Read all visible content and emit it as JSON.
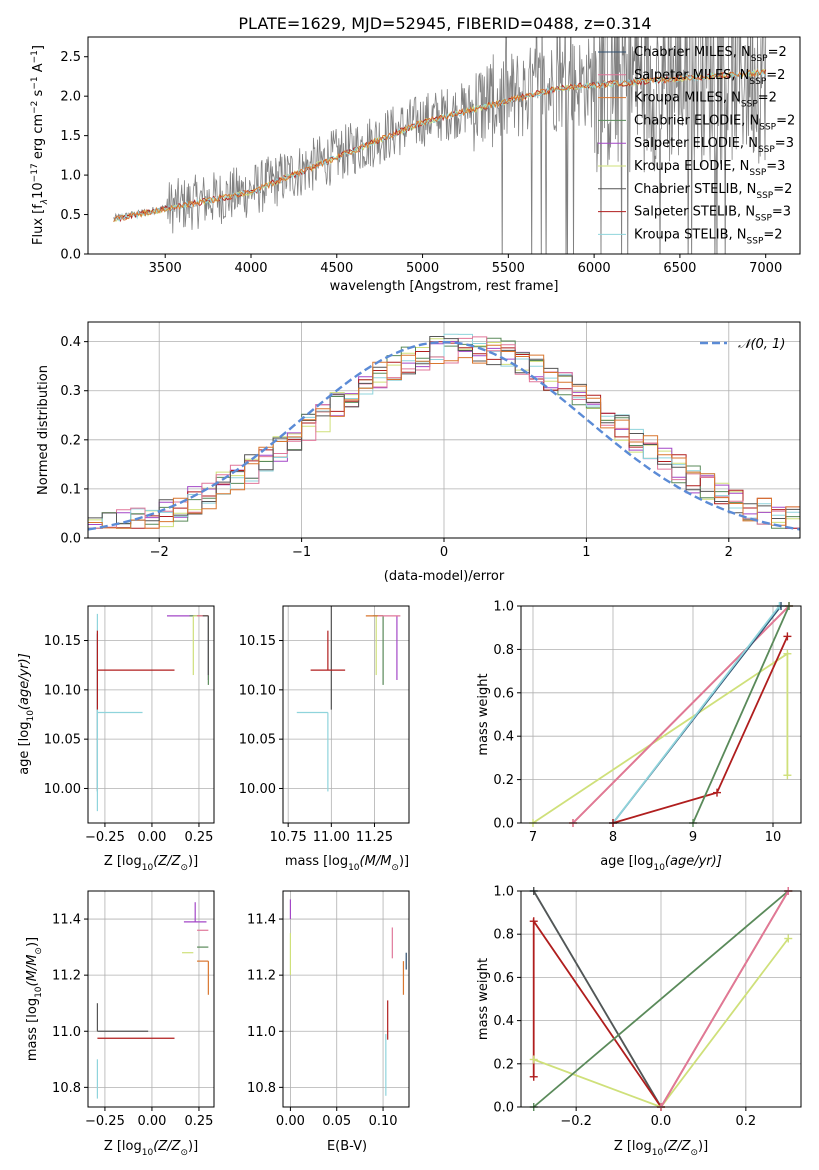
{
  "title": "PLATE=1629, MJD=52945, FIBERID=0488, z=0.314",
  "colors": {
    "chabrier_miles": "#2f4f6f",
    "salpeter_miles": "#e0779a",
    "kroupa_miles": "#d9762f",
    "chabrier_elodie": "#5a8a5a",
    "salpeter_elodie": "#a347c7",
    "kroupa_elodie": "#cfe07a",
    "chabrier_stelib": "#555555",
    "salpeter_stelib": "#b01e1e",
    "kroupa_stelib": "#8fd4dc",
    "data": "#808080",
    "normal_curve": "#5b8bd6"
  },
  "chart_data": [
    {
      "type": "line",
      "name": "spectrum",
      "xlabel": "wavelength [Angstrom, rest frame]",
      "ylabel_main": "Flux [f",
      "ylabel_sub": "λ",
      "ylabel_rest": "10",
      "ylabel_exp1": "−17",
      "ylabel_mid": " erg cm",
      "ylabel_exp2": "−2",
      "ylabel_mid2": " s",
      "ylabel_exp3": "−1",
      "ylabel_mid3": " A",
      "ylabel_exp4": "−1",
      "ylabel_end": "]",
      "xlim": [
        3050,
        7200
      ],
      "ylim": [
        0,
        2.75
      ],
      "xticks": [
        3500,
        4000,
        4500,
        5000,
        5500,
        6000,
        6500,
        7000
      ],
      "yticks": [
        0.0,
        0.5,
        1.0,
        1.5,
        2.0,
        2.5
      ],
      "x_start": 3200,
      "x_end": 7000,
      "grid": false,
      "legend_position": "top-right",
      "legend": [
        {
          "label": "Chabrier MILES, N",
          "sub": "SSP",
          "suffix": "=2",
          "color_key": "chabrier_miles"
        },
        {
          "label": "Salpeter MILES, N",
          "sub": "SSP",
          "suffix": "=2",
          "color_key": "salpeter_miles"
        },
        {
          "label": "Kroupa MILES, N",
          "sub": "SSP",
          "suffix": "=2",
          "color_key": "kroupa_miles"
        },
        {
          "label": "Chabrier ELODIE, N",
          "sub": "SSP",
          "suffix": "=2",
          "color_key": "chabrier_elodie"
        },
        {
          "label": "Salpeter ELODIE, N",
          "sub": "SSP",
          "suffix": "=3",
          "color_key": "salpeter_elodie"
        },
        {
          "label": "Kroupa ELODIE, N",
          "sub": "SSP",
          "suffix": "=3",
          "color_key": "kroupa_elodie"
        },
        {
          "label": "Chabrier STELIB, N",
          "sub": "SSP",
          "suffix": "=2",
          "color_key": "chabrier_stelib"
        },
        {
          "label": "Salpeter STELIB, N",
          "sub": "SSP",
          "suffix": "=3",
          "color_key": "salpeter_stelib"
        },
        {
          "label": "Kroupa STELIB, N",
          "sub": "SSP",
          "suffix": "=2",
          "color_key": "kroupa_stelib"
        }
      ]
    },
    {
      "type": "histogram",
      "name": "residuals",
      "xlabel": "(data-model)/error",
      "ylabel": "Normed distribution",
      "xlim": [
        -2.5,
        2.5
      ],
      "ylim": [
        0,
        0.44
      ],
      "xticks": [
        -2,
        -1,
        0,
        1,
        2
      ],
      "yticks": [
        0.0,
        0.1,
        0.2,
        0.3,
        0.4
      ],
      "bin_width": 0.1,
      "grid": true,
      "legend_position": "top-right",
      "legend_label": "𝒩(0, 1)"
    },
    {
      "type": "scatter",
      "name": "age-vs-Z",
      "xlabel": "Z [log",
      "xlabel_sub": "10",
      "xlabel_end": "(Z/Z",
      "xlabel_sun": "⊙",
      "xlabel_close": ")]",
      "ylabel": "age  [log",
      "ylabel_sub": "10",
      "ylabel_end": "(age/yr)]",
      "xlim": [
        -0.34,
        0.33
      ],
      "ylim": [
        9.965,
        10.185
      ],
      "xticks": [
        "-0.25",
        "0.00",
        "0.25"
      ],
      "xtick_values": [
        -0.25,
        0.0,
        0.25
      ],
      "yticks": [
        "10.00",
        "10.05",
        "10.10",
        "10.15"
      ],
      "ytick_values": [
        10.0,
        10.05,
        10.1,
        10.15
      ],
      "grid": true,
      "points": [
        {
          "key": "chabrier_miles",
          "x": -0.29,
          "y": 10.077,
          "xerr": [
            0.0,
            0.0
          ],
          "yerr": [
            0.08,
            0.08
          ]
        },
        {
          "key": "kroupa_stelib",
          "x": -0.29,
          "y": 10.077,
          "xerr": [
            0.0,
            0.24
          ],
          "yerr": [
            0.1,
            0.1
          ]
        },
        {
          "key": "salpeter_stelib",
          "x": -0.29,
          "y": 10.12,
          "xerr": [
            0.0,
            0.41
          ],
          "yerr": [
            0.04,
            0.04
          ]
        },
        {
          "key": "salpeter_elodie",
          "x": 0.3,
          "y": 10.175,
          "xerr": [
            0.22,
            0.0
          ],
          "yerr": [
            0.065,
            0.0
          ]
        },
        {
          "key": "chabrier_elodie",
          "x": 0.3,
          "y": 10.175,
          "xerr": [
            0.1,
            0.0
          ],
          "yerr": [
            0.07,
            0.0
          ]
        },
        {
          "key": "kroupa_elodie",
          "x": 0.22,
          "y": 10.175,
          "xerr": [
            0.0,
            0.08
          ],
          "yerr": [
            0.06,
            0.0
          ]
        },
        {
          "key": "kroupa_miles",
          "x": 0.3,
          "y": 10.175,
          "xerr": [
            0.06,
            0.0
          ],
          "yerr": [
            0.0,
            0.0
          ]
        },
        {
          "key": "salpeter_miles",
          "x": 0.3,
          "y": 10.175,
          "xerr": [
            0.06,
            0.0
          ],
          "yerr": [
            0.0,
            0.0
          ]
        },
        {
          "key": "chabrier_stelib",
          "x": 0.3,
          "y": 10.175,
          "xerr": [
            0.03,
            0.0
          ],
          "yerr": [
            0.06,
            0.0
          ]
        }
      ]
    },
    {
      "type": "scatter",
      "name": "age-vs-mass",
      "xlabel": "mass [log",
      "xlabel_sub": "10",
      "xlabel_end": "(M/M",
      "xlabel_sun": "⊙",
      "xlabel_close": ")]",
      "xlim": [
        10.72,
        11.45
      ],
      "ylim": [
        9.965,
        10.185
      ],
      "xticks": [
        "10.75",
        "11.00",
        "11.25"
      ],
      "xtick_values": [
        10.75,
        11.0,
        11.25
      ],
      "yticks": [
        "10.00",
        "10.05",
        "10.10",
        "10.15"
      ],
      "ytick_values": [
        10.0,
        10.05,
        10.1,
        10.15
      ],
      "grid": true,
      "points": [
        {
          "key": "kroupa_stelib",
          "x": 10.98,
          "y": 10.077,
          "xerr": [
            0.18,
            0.0
          ],
          "yerr": [
            0.08,
            0.0
          ]
        },
        {
          "key": "chabrier_stelib",
          "x": 11.0,
          "y": 10.12,
          "xerr": [
            0.0,
            0.0
          ],
          "yerr": [
            0.04,
            0.12
          ]
        },
        {
          "key": "salpeter_stelib",
          "x": 10.98,
          "y": 10.12,
          "xerr": [
            0.1,
            0.1
          ],
          "yerr": [
            0.0,
            0.04
          ]
        },
        {
          "key": "salpeter_elodie",
          "x": 11.38,
          "y": 10.175,
          "xerr": [
            0.0,
            0.0
          ],
          "yerr": [
            0.065,
            0.0
          ]
        },
        {
          "key": "chabrier_elodie",
          "x": 11.3,
          "y": 10.175,
          "xerr": [
            0.06,
            0.0
          ],
          "yerr": [
            0.07,
            0.0
          ]
        },
        {
          "key": "kroupa_elodie",
          "x": 11.26,
          "y": 10.175,
          "xerr": [
            0.0,
            0.0
          ],
          "yerr": [
            0.06,
            0.0
          ]
        },
        {
          "key": "kroupa_miles",
          "x": 11.3,
          "y": 10.175,
          "xerr": [
            0.1,
            0.0
          ],
          "yerr": [
            0.0,
            0.0
          ]
        },
        {
          "key": "salpeter_miles",
          "x": 11.35,
          "y": 10.175,
          "xerr": [
            0.08,
            0.05
          ],
          "yerr": [
            0.0,
            0.0
          ]
        }
      ]
    },
    {
      "type": "line",
      "name": "mass-weight-vs-age",
      "xlabel": "age  [log",
      "xlabel_sub": "10",
      "xlabel_end": "(age/yr)]",
      "ylabel": "mass weight",
      "xlim": [
        6.85,
        10.35
      ],
      "ylim": [
        0.0,
        1.0
      ],
      "xticks": [
        "7",
        "8",
        "9",
        "10"
      ],
      "xtick_values": [
        7,
        8,
        9,
        10
      ],
      "yticks": [
        "0.0",
        "0.2",
        "0.4",
        "0.6",
        "0.8",
        "1.0"
      ],
      "ytick_values": [
        0.0,
        0.2,
        0.4,
        0.6,
        0.8,
        1.0
      ],
      "grid": true,
      "series": [
        {
          "key": "kroupa_elodie",
          "points": [
            [
              7.0,
              0.0
            ],
            [
              10.18,
              0.78
            ],
            [
              10.18,
              0.22
            ]
          ]
        },
        {
          "key": "kroupa_miles",
          "points": [
            [
              7.5,
              0.0
            ],
            [
              10.2,
              1.0
            ]
          ]
        },
        {
          "key": "salpeter_miles",
          "points": [
            [
              7.5,
              0.0
            ],
            [
              10.2,
              1.0
            ]
          ]
        },
        {
          "key": "chabrier_miles",
          "points": [
            [
              8.0,
              0.0
            ],
            [
              10.1,
              1.0
            ]
          ]
        },
        {
          "key": "kroupa_stelib",
          "points": [
            [
              8.0,
              0.0
            ],
            [
              10.08,
              1.0
            ]
          ]
        },
        {
          "key": "salpeter_stelib",
          "points": [
            [
              8.0,
              0.0
            ],
            [
              9.3,
              0.14
            ],
            [
              10.18,
              0.86
            ]
          ]
        },
        {
          "key": "chabrier_elodie",
          "points": [
            [
              9.0,
              0.0
            ],
            [
              10.2,
              1.0
            ]
          ]
        }
      ]
    },
    {
      "type": "scatter",
      "name": "mass-vs-Z",
      "xlabel": "Z [log",
      "xlabel_sub": "10",
      "xlabel_end": "(Z/Z",
      "xlabel_sun": "⊙",
      "xlabel_close": ")]",
      "ylabel": "mass [log",
      "ylabel_sub": "10",
      "ylabel_end": "(M/M",
      "ylabel_sun": "⊙",
      "ylabel_close": ")]",
      "xlim": [
        -0.34,
        0.33
      ],
      "ylim": [
        10.73,
        11.5
      ],
      "xticks": [
        "-0.25",
        "0.00",
        "0.25"
      ],
      "xtick_values": [
        -0.25,
        0.0,
        0.25
      ],
      "yticks": [
        "10.8",
        "11.0",
        "11.2",
        "11.4"
      ],
      "ytick_values": [
        10.8,
        11.0,
        11.2,
        11.4
      ],
      "grid": true,
      "points": [
        {
          "key": "chabrier_stelib",
          "x": -0.29,
          "y": 11.0,
          "xerr": [
            0.0,
            0.27
          ],
          "yerr": [
            0.0,
            0.1
          ]
        },
        {
          "key": "salpeter_stelib",
          "x": -0.29,
          "y": 10.975,
          "xerr": [
            0.0,
            0.41
          ],
          "yerr": [
            0.0,
            0.0
          ]
        },
        {
          "key": "kroupa_stelib",
          "x": -0.29,
          "y": 10.9,
          "xerr": [
            0.0,
            0.0
          ],
          "yerr": [
            0.14,
            0.0
          ]
        },
        {
          "key": "salpeter_elodie",
          "x": 0.23,
          "y": 11.39,
          "xerr": [
            0.06,
            0.06
          ],
          "yerr": [
            0.0,
            0.07
          ]
        },
        {
          "key": "salpeter_miles",
          "x": 0.3,
          "y": 11.36,
          "xerr": [
            0.06,
            0.0
          ],
          "yerr": [
            0.0,
            0.0
          ]
        },
        {
          "key": "chabrier_elodie",
          "x": 0.3,
          "y": 11.3,
          "xerr": [
            0.06,
            0.0
          ],
          "yerr": [
            0.0,
            0.0
          ]
        },
        {
          "key": "kroupa_elodie",
          "x": 0.22,
          "y": 11.28,
          "xerr": [
            0.06,
            0.0
          ],
          "yerr": [
            0.0,
            0.0
          ]
        },
        {
          "key": "kroupa_miles",
          "x": 0.3,
          "y": 11.25,
          "xerr": [
            0.06,
            0.0
          ],
          "yerr": [
            0.12,
            0.0
          ]
        }
      ]
    },
    {
      "type": "scatter",
      "name": "mass-vs-ebv",
      "xlabel": "E(B-V)",
      "xlim": [
        -0.008,
        0.128
      ],
      "ylim": [
        10.73,
        11.5
      ],
      "xticks": [
        "0.00",
        "0.05",
        "0.10"
      ],
      "xtick_values": [
        0.0,
        0.05,
        0.1
      ],
      "yticks": [
        "10.8",
        "11.0",
        "11.2",
        "11.4"
      ],
      "ytick_values": [
        10.8,
        11.0,
        11.2,
        11.4
      ],
      "grid": true,
      "points": [
        {
          "key": "salpeter_elodie",
          "x": 0.0,
          "y": 11.4,
          "xerr": [
            0.0,
            0.0
          ],
          "yerr": [
            0.0,
            0.07
          ]
        },
        {
          "key": "kroupa_elodie",
          "x": 0.0,
          "y": 11.3,
          "xerr": [
            0.0,
            0.0
          ],
          "yerr": [
            0.1,
            0.05
          ]
        },
        {
          "key": "salpeter_miles",
          "x": 0.11,
          "y": 11.33,
          "xerr": [
            0.0,
            0.0
          ],
          "yerr": [
            0.07,
            0.04
          ]
        },
        {
          "key": "kroupa_miles",
          "x": 0.122,
          "y": 11.25,
          "xerr": [
            0.0,
            0.0
          ],
          "yerr": [
            0.12,
            0.0
          ]
        },
        {
          "key": "chabrier_miles",
          "x": 0.125,
          "y": 11.25,
          "xerr": [
            0.0,
            0.0
          ],
          "yerr": [
            0.03,
            0.03
          ]
        },
        {
          "key": "salpeter_stelib",
          "x": 0.105,
          "y": 11.0,
          "xerr": [
            0.0,
            0.0
          ],
          "yerr": [
            0.03,
            0.11
          ]
        },
        {
          "key": "kroupa_stelib",
          "x": 0.103,
          "y": 10.85,
          "xerr": [
            0.0,
            0.0
          ],
          "yerr": [
            0.08,
            0.14
          ]
        }
      ]
    },
    {
      "type": "line",
      "name": "mass-weight-vs-Z",
      "xlabel": "Z [log",
      "xlabel_sub": "10",
      "xlabel_end": "(Z/Z",
      "xlabel_sun": "⊙",
      "xlabel_close": ")]",
      "ylabel": "mass weight",
      "xlim": [
        -0.33,
        0.33
      ],
      "ylim": [
        0.0,
        1.0
      ],
      "xticks": [
        "−0.2",
        "0.0",
        "0.2"
      ],
      "xtick_values": [
        -0.2,
        0.0,
        0.2
      ],
      "yticks": [
        "0.0",
        "0.2",
        "0.4",
        "0.6",
        "0.8",
        "1.0"
      ],
      "ytick_values": [
        0.0,
        0.2,
        0.4,
        0.6,
        0.8,
        1.0
      ],
      "grid": true,
      "series": [
        {
          "key": "kroupa_stelib",
          "points": [
            [
              -0.3,
              1.0
            ],
            [
              0.0,
              0.0
            ]
          ]
        },
        {
          "key": "chabrier_stelib",
          "points": [
            [
              -0.3,
              1.0
            ],
            [
              0.0,
              0.0
            ]
          ]
        },
        {
          "key": "salpeter_stelib",
          "points": [
            [
              -0.3,
              0.14
            ],
            [
              -0.3,
              0.86
            ],
            [
              0.0,
              0.0
            ]
          ]
        },
        {
          "key": "kroupa_elodie",
          "points": [
            [
              -0.3,
              0.22
            ],
            [
              0.0,
              0.0
            ],
            [
              0.3,
              0.78
            ]
          ]
        },
        {
          "key": "chabrier_elodie",
          "points": [
            [
              -0.3,
              0.0
            ],
            [
              0.3,
              1.0
            ]
          ]
        },
        {
          "key": "kroupa_miles",
          "points": [
            [
              0.0,
              0.0
            ],
            [
              0.3,
              1.0
            ]
          ]
        },
        {
          "key": "salpeter_miles",
          "points": [
            [
              0.0,
              0.0
            ],
            [
              0.3,
              1.0
            ]
          ]
        }
      ]
    }
  ]
}
